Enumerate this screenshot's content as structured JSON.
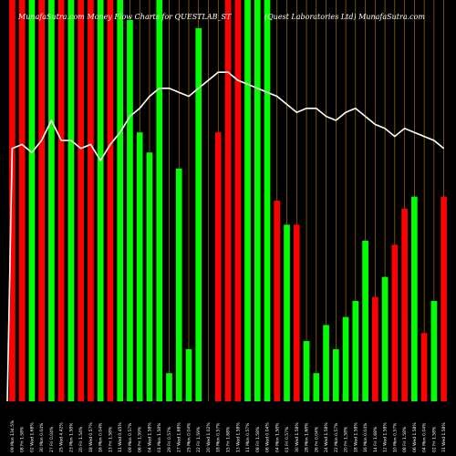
{
  "chart_data": {
    "type": "bar",
    "title_left": "MunafaSutra.com Money Flow Charts for QUESTLAB_ST",
    "title_right": "(Quest Laboratories Ltd) MunafaSutra.com",
    "xlabel": "",
    "ylabel": "",
    "ylim": [
      0,
      100
    ],
    "grid": "vertical",
    "colors": {
      "up": "#00ff00",
      "down": "#ff0000",
      "line": "#ffffff",
      "grid": "#b8860b",
      "background": "#000000"
    },
    "categories": [
      "09 Mon 134.5%",
      "08 Fri 1.58%",
      "02 Wed 1.68%",
      "30 Mon 0.04%",
      "27 Fri 0.04%",
      "25 Wed 4.42%",
      "23 Mon 1.58%",
      "20 Fri 1.54%",
      "18 Wed 0.57%",
      "16 Mon 0.04%",
      "13 Fri 1.58%",
      "11 Wed 0.45%",
      "09 Mon 0.57%",
      "06 Fri 1.59%",
      "04 Wed 1.58%",
      "01 Mon 1.58%",
      "29 Fri 0.57%",
      "27 Wed 1.68%",
      "25 Mon 0.04%",
      "22 Fri 1.59%",
      "20 Wed 1.02%",
      "18 Mon 0.57%",
      "15 Fri 1.68%",
      "13 Wed 1.58%",
      "11 Mon 0.57%",
      "08 Fri 1.58%",
      "06 Wed 0.04%",
      "04 Mon 1.58%",
      "01 Fri 0.57%",
      "30 Wed 1.58%",
      "28 Mon 1.68%",
      "26 Fri 0.04%",
      "24 Wed 1.58%",
      "22 Mon 0.57%",
      "20 Fri 1.58%",
      "18 Wed 1.58%",
      "16 Mon 0.04%",
      "14 Fri 1.68%",
      "12 Wed 1.58%",
      "10 Mon 0.57%",
      "08 Fri 1.58%",
      "06 Wed 1.58%",
      "04 Mon 0.04%",
      "02 Fri 1.58%",
      "31 Wed 1.58%"
    ],
    "directions": [
      "down",
      "down",
      "green",
      "down",
      "green",
      "down",
      "green",
      "down",
      "down",
      "green",
      "down",
      "green",
      "green",
      "green",
      "green",
      "green",
      "green",
      "green",
      "green",
      "green",
      "green",
      "down",
      "down",
      "down",
      "green",
      "green",
      "green",
      "down",
      "green",
      "down",
      "green",
      "green",
      "green",
      "green",
      "green",
      "green",
      "green",
      "down",
      "green",
      "down",
      "down",
      "green",
      "down",
      "green",
      "down"
    ],
    "values": [
      100,
      100,
      100,
      100,
      100,
      100,
      100,
      100,
      100,
      100,
      100,
      100,
      95,
      67,
      62,
      100,
      7,
      58,
      13,
      93,
      0,
      67,
      100,
      100,
      100,
      100,
      100,
      50,
      44,
      44,
      15,
      7,
      19,
      13,
      21,
      25,
      40,
      26,
      31,
      39,
      48,
      51,
      17,
      25,
      51
    ],
    "line_values": [
      63,
      64,
      62,
      65,
      70,
      65,
      65,
      63,
      64,
      60,
      64,
      67,
      71,
      73,
      76,
      78,
      78,
      77,
      76,
      78,
      80,
      82,
      82,
      80,
      79,
      78,
      77,
      76,
      74,
      72,
      73,
      73,
      71,
      70,
      72,
      73,
      71,
      69,
      68,
      66,
      68,
      67,
      66,
      65,
      63
    ]
  }
}
